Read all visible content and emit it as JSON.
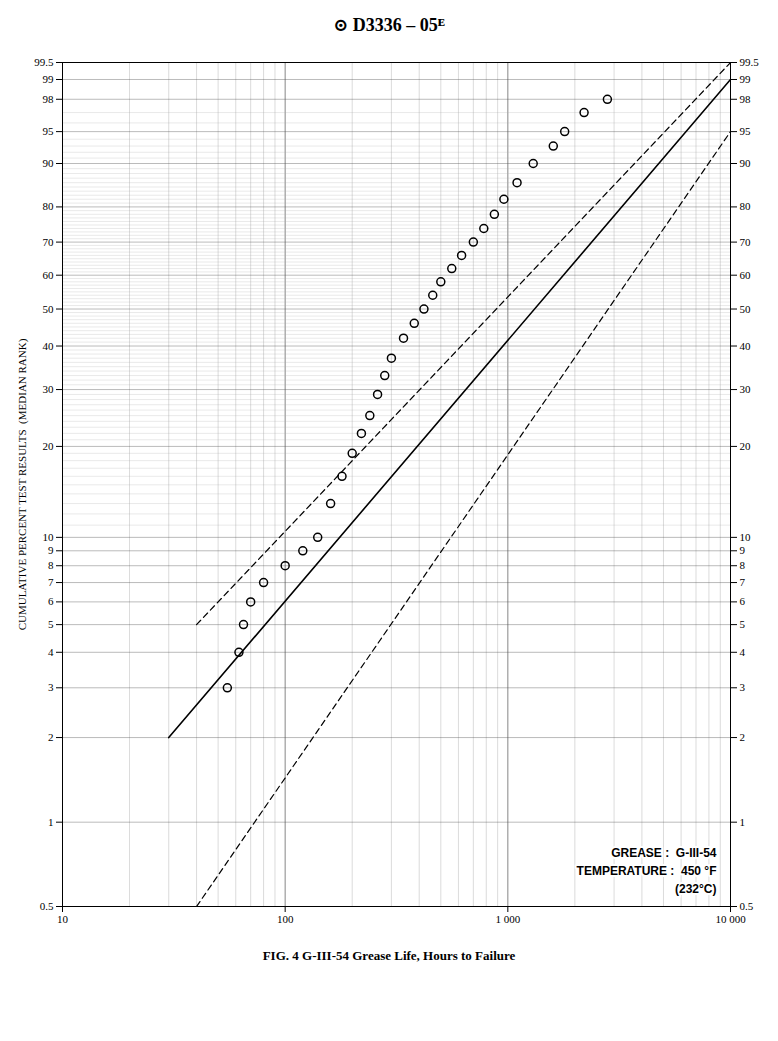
{
  "chart_data": {
    "type": "scatter",
    "title": "⊙ D3336 – 05ᴱ",
    "xlabel": "FIG. 4 G-III-54 Grease Life, Hours to Failure",
    "ylabel": "CUMULATIVE PERCENT TEST RESULTS  (MEDIAN RANK)",
    "log": "x",
    "grid": true,
    "xlim": [
      10,
      10000
    ],
    "xticks": [
      10,
      100,
      {
        "value": 1000,
        "label": "1 000"
      },
      {
        "value": 10000,
        "label": "10 000"
      }
    ],
    "ylim": [
      0.5,
      99.5
    ],
    "yticks": [
      0.5,
      1,
      2,
      3,
      4,
      5,
      6,
      7,
      8,
      9,
      10,
      20,
      30,
      40,
      50,
      60,
      70,
      80,
      90,
      95,
      98,
      99,
      99.5
    ],
    "annotations": [
      "GREASE :  G-III-54",
      "TEMPERATURE :  450 °F",
      "(232°C)"
    ],
    "series": [
      {
        "type": "scatter",
        "marker": "circle",
        "color": "#000000",
        "x": [
          55,
          62,
          65,
          70,
          80,
          100,
          120,
          140,
          160,
          180,
          200,
          220,
          240,
          260,
          280,
          300,
          340,
          380,
          420,
          460,
          500,
          560,
          620,
          700,
          780,
          870,
          960,
          1100,
          1300,
          1600,
          1800,
          2200,
          2800
        ],
        "values": [
          3,
          4,
          5,
          6,
          7,
          8,
          9,
          10,
          13,
          16,
          19,
          22,
          25,
          29,
          33,
          37,
          42,
          46,
          50,
          54,
          58,
          62,
          66,
          70,
          74,
          78,
          82,
          86,
          90,
          93,
          95,
          97,
          98
        ]
      },
      {
        "type": "line",
        "line_style": "solid",
        "color": "#000000",
        "x": [
          30,
          10000
        ],
        "values": [
          2,
          99
        ]
      },
      {
        "type": "line",
        "line_style": "dashed",
        "color": "#000000",
        "x": [
          40,
          10000
        ],
        "values": [
          5,
          99.5
        ]
      },
      {
        "type": "line",
        "line_style": "dashed",
        "color": "#000000",
        "x": [
          40,
          10000
        ],
        "values": [
          0.5,
          95
        ]
      }
    ]
  }
}
